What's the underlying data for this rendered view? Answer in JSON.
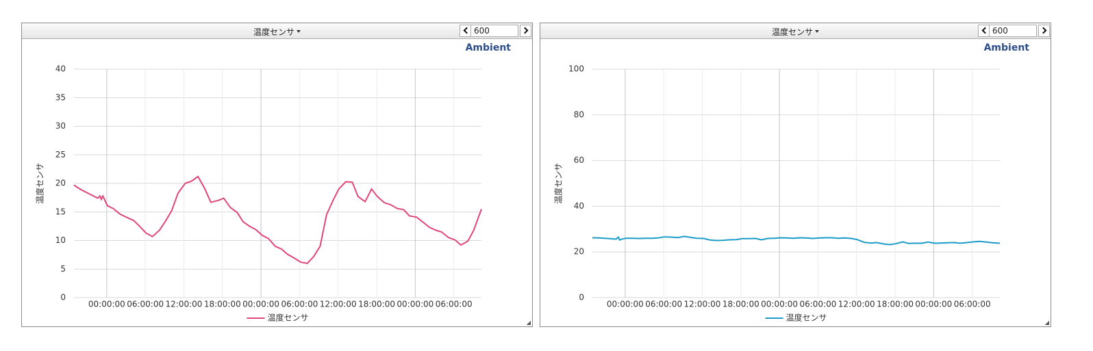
{
  "panels": [
    {
      "menu": "温度センサ",
      "count": "600"
    },
    {
      "menu": "温度センサ",
      "count": "600"
    }
  ],
  "chart_data": [
    {
      "type": "line",
      "annotation": "Ambient",
      "ylabel": "温度センサ",
      "x": [
        -5.1,
        -4,
        -2.8,
        -1.4,
        -1.07,
        -0.85,
        -0.6,
        0.1,
        1,
        2.1,
        3.2,
        4.2,
        5.1,
        6.1,
        7.1,
        8.2,
        9.2,
        10.1,
        11.1,
        12.2,
        13.2,
        14.2,
        15.2,
        16.2,
        17.3,
        18.2,
        19.2,
        20.3,
        21.2,
        22.2,
        23.2,
        24.2,
        25.2,
        26.2,
        27.2,
        28.1,
        29.2,
        30.2,
        31.2,
        32.2,
        33.2,
        34.2,
        35.2,
        36.1,
        37.2,
        38.2,
        39.1,
        40.2,
        41.2,
        42.1,
        43.2,
        44.1,
        45.2,
        46.2,
        47.1,
        48.2,
        49.1,
        50.2,
        51.2,
        52.1,
        53.2,
        54.2,
        55.1,
        56.2,
        57.1,
        58.3
      ],
      "series": [
        {
          "name": "温度センサ",
          "color": "#e0457b",
          "values": [
            19.7,
            18.9,
            18.2,
            17.4,
            17.8,
            17.2,
            17.8,
            16.1,
            15.6,
            14.6,
            14.0,
            13.5,
            12.5,
            11.3,
            10.7,
            11.8,
            13.5,
            15.2,
            18.3,
            20.0,
            20.4,
            21.2,
            19.2,
            16.7,
            17.0,
            17.4,
            15.8,
            14.9,
            13.3,
            12.5,
            11.9,
            10.9,
            10.3,
            9.0,
            8.5,
            7.6,
            6.9,
            6.2,
            6.0,
            7.2,
            9.0,
            14.5,
            17.0,
            19.0,
            20.3,
            20.2,
            17.7,
            16.8,
            19.0,
            17.7,
            16.6,
            16.3,
            15.6,
            15.4,
            14.3,
            14.1,
            13.3,
            12.3,
            11.8,
            11.5,
            10.5,
            10.1,
            9.2,
            9.9,
            11.8,
            15.5
          ]
        }
      ],
      "xlim": [
        -5.1,
        58.3
      ],
      "xticks": [
        {
          "value": 0,
          "label": "00:00:00"
        },
        {
          "value": 6,
          "label": "06:00:00"
        },
        {
          "value": 12,
          "label": "12:00:00"
        },
        {
          "value": 18,
          "label": "18:00:00"
        },
        {
          "value": 24,
          "label": "00:00:00"
        },
        {
          "value": 30,
          "label": "06:00:00"
        },
        {
          "value": 36,
          "label": "12:00:00"
        },
        {
          "value": 42,
          "label": "18:00:00"
        },
        {
          "value": 48,
          "label": "00:00:00"
        },
        {
          "value": 54,
          "label": "06:00:00"
        }
      ],
      "ylim": [
        0,
        40
      ],
      "yticks": [
        0,
        5,
        10,
        15,
        20,
        25,
        30,
        35,
        40
      ],
      "grid": true
    },
    {
      "type": "line",
      "annotation": "Ambient",
      "ylabel": "温度センサ",
      "x": [
        -5.1,
        -4,
        -2.8,
        -1.4,
        -1.07,
        -0.85,
        -0.6,
        0.1,
        1,
        2.1,
        3.2,
        4.2,
        5.1,
        6.1,
        7.1,
        8.2,
        9.2,
        10.1,
        11.1,
        12.2,
        13.2,
        14.2,
        15.2,
        16.2,
        17.3,
        18.2,
        19.2,
        20.3,
        21.2,
        22.2,
        23.2,
        24.2,
        25.2,
        26.2,
        27.2,
        28.1,
        29.2,
        30.2,
        31.2,
        32.2,
        33.2,
        34.2,
        35.2,
        36.1,
        37.2,
        38.2,
        39.1,
        40.2,
        41.2,
        42.1,
        43.2,
        44.1,
        45.2,
        46.2,
        47.1,
        48.2,
        49.1,
        50.2,
        51.2,
        52.1,
        53.2,
        54.2,
        55.1,
        56.2,
        57.1,
        58.3
      ],
      "series": [
        {
          "name": "温度センサ",
          "color": "#1a9bc9",
          "values": [
            26.2,
            26.1,
            25.9,
            25.6,
            26.5,
            25.2,
            25.5,
            26.0,
            26.0,
            25.9,
            26.0,
            26.0,
            26.1,
            26.6,
            26.5,
            26.3,
            26.8,
            26.4,
            26.0,
            25.9,
            25.2,
            25.0,
            25.1,
            25.3,
            25.4,
            25.8,
            25.8,
            25.9,
            25.3,
            25.9,
            26.0,
            26.2,
            26.1,
            26.0,
            26.2,
            26.1,
            25.9,
            26.1,
            26.2,
            26.2,
            26.0,
            26.1,
            25.9,
            25.4,
            24.2,
            23.9,
            24.1,
            23.5,
            23.2,
            23.6,
            24.4,
            23.7,
            23.8,
            23.8,
            24.3,
            23.8,
            23.9,
            24.0,
            24.1,
            23.8,
            24.1,
            24.4,
            24.6,
            24.3,
            24.0,
            23.8
          ]
        }
      ],
      "xlim": [
        -5.1,
        58.3
      ],
      "xticks": [
        {
          "value": 0,
          "label": "00:00:00"
        },
        {
          "value": 6,
          "label": "06:00:00"
        },
        {
          "value": 12,
          "label": "12:00:00"
        },
        {
          "value": 18,
          "label": "18:00:00"
        },
        {
          "value": 24,
          "label": "00:00:00"
        },
        {
          "value": 30,
          "label": "06:00:00"
        },
        {
          "value": 36,
          "label": "12:00:00"
        },
        {
          "value": 42,
          "label": "18:00:00"
        },
        {
          "value": 48,
          "label": "00:00:00"
        },
        {
          "value": 54,
          "label": "06:00:00"
        }
      ],
      "ylim": [
        0,
        100
      ],
      "yticks": [
        0,
        20,
        40,
        60,
        80,
        100
      ],
      "grid": true
    }
  ]
}
